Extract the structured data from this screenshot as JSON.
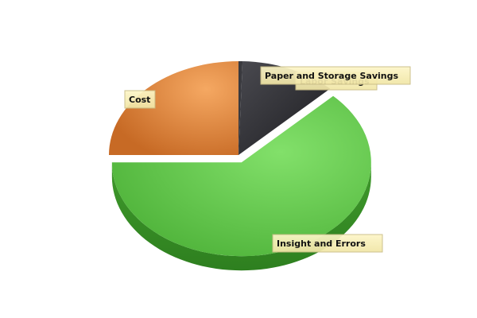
{
  "chart_data": {
    "type": "pie",
    "style": "3d-exploded",
    "title": "",
    "slices": [
      {
        "label": "Labor Savings",
        "value": 0.5,
        "color": "#3a3a3f"
      },
      {
        "label": "Paper and Storage Savings",
        "value": 12.0,
        "color": "#2b2b30"
      },
      {
        "label": "Insight and Errors",
        "value": 62.5,
        "color": "#6cc94f"
      },
      {
        "label": "Cost",
        "value": 25.0,
        "color": "#e58a45"
      }
    ],
    "exploded": [
      "Insight and Errors"
    ],
    "legend": "none",
    "label_style": "callout boxes"
  }
}
